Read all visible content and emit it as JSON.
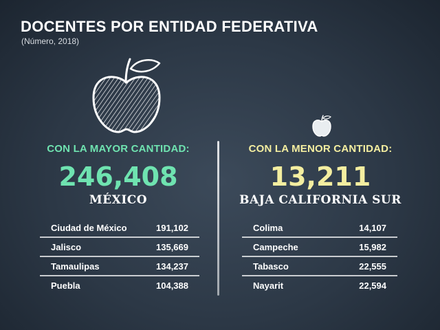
{
  "title": "DOCENTES POR ENTIDAD FEDERATIVA",
  "subtitle": "(Número, 2018)",
  "icons": {
    "large": "apple-icon",
    "small": "apple-icon"
  },
  "colors": {
    "background": "#2c3846",
    "highlight_green": "#6fe3b0",
    "highlight_yellow": "#f4eea0"
  },
  "most": {
    "heading": "CON LA MAYOR CANTIDAD:",
    "value": "246,408",
    "place": "MÉXICO",
    "rows": [
      {
        "name": "Ciudad de México",
        "value": "191,102"
      },
      {
        "name": "Jalisco",
        "value": "135,669"
      },
      {
        "name": "Tamaulipas",
        "value": "134,237"
      },
      {
        "name": "Puebla",
        "value": "104,388"
      }
    ]
  },
  "least": {
    "heading": "CON LA MENOR CANTIDAD:",
    "value": "13,211",
    "place": "BAJA CALIFORNIA SUR",
    "rows": [
      {
        "name": "Colima",
        "value": "14,107"
      },
      {
        "name": "Campeche",
        "value": "15,982"
      },
      {
        "name": "Tabasco",
        "value": "22,555"
      },
      {
        "name": "Nayarit",
        "value": "22,594"
      }
    ]
  }
}
